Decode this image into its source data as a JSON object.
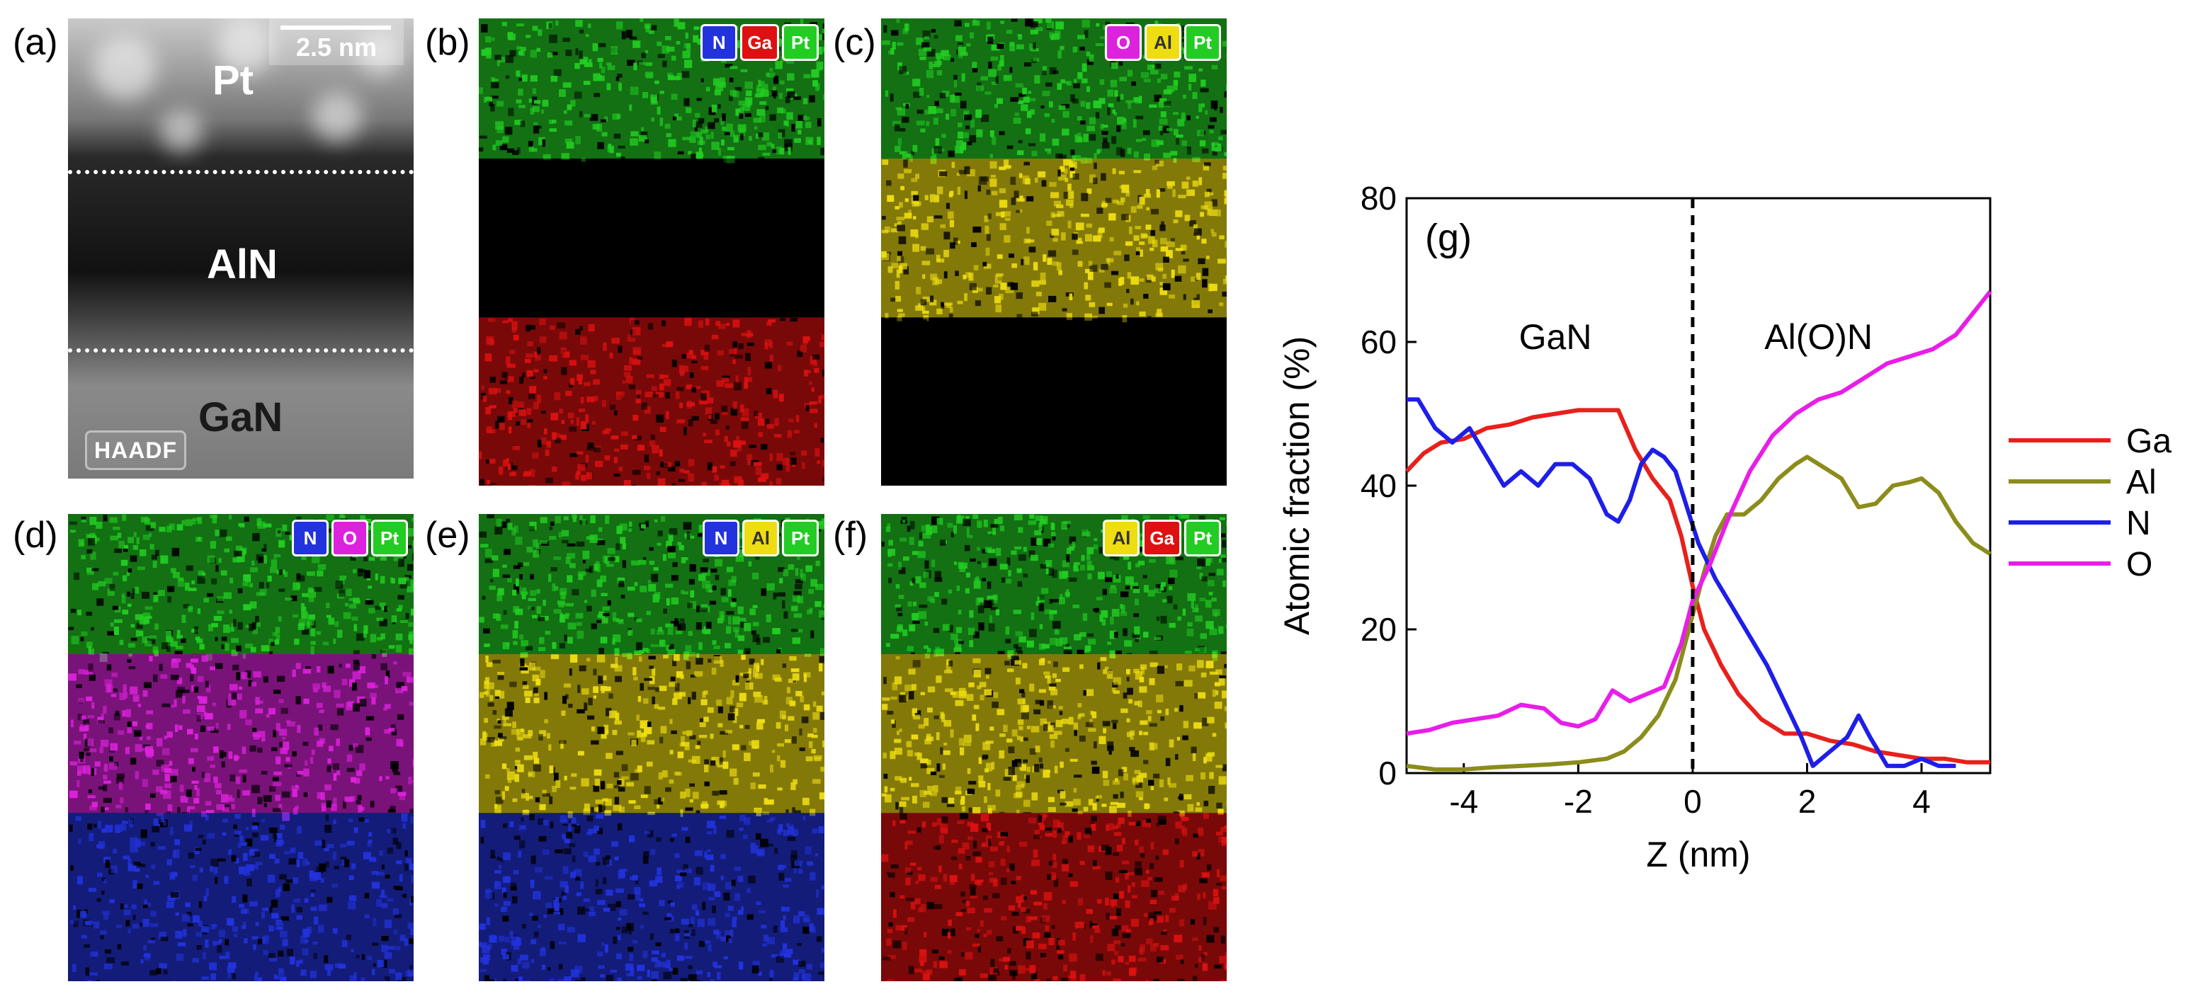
{
  "panels": {
    "a": {
      "label": "(a)",
      "scale_bar": "2.5 nm",
      "layers": [
        "Pt",
        "AlN",
        "GaN"
      ],
      "tag": "HAADF"
    },
    "b": {
      "label": "(b)",
      "badges": [
        {
          "text": "N",
          "color": "#2233dd"
        },
        {
          "text": "Ga",
          "color": "#dd1111"
        },
        {
          "text": "Pt",
          "color": "#22cc22"
        }
      ],
      "layers": [
        "#22cc22",
        "#000000",
        "#dd1111"
      ]
    },
    "c": {
      "label": "(c)",
      "badges": [
        {
          "text": "O",
          "color": "#dd22dd"
        },
        {
          "text": "Al",
          "color": "#eedd11"
        },
        {
          "text": "Pt",
          "color": "#22cc22"
        }
      ],
      "layers": [
        "#22cc22",
        "#eedd11",
        "#000000"
      ]
    },
    "d": {
      "label": "(d)",
      "badges": [
        {
          "text": "N",
          "color": "#2233dd"
        },
        {
          "text": "O",
          "color": "#dd22dd"
        },
        {
          "text": "Pt",
          "color": "#22cc22"
        }
      ],
      "layers": [
        "#22cc22",
        "#dd22dd",
        "#2233dd"
      ]
    },
    "e": {
      "label": "(e)",
      "badges": [
        {
          "text": "N",
          "color": "#2233dd"
        },
        {
          "text": "Al",
          "color": "#eedd11"
        },
        {
          "text": "Pt",
          "color": "#22cc22"
        }
      ],
      "layers": [
        "#22cc22",
        "#eedd11",
        "#2233dd"
      ]
    },
    "f": {
      "label": "(f)",
      "badges": [
        {
          "text": "Al",
          "color": "#eedd11"
        },
        {
          "text": "Ga",
          "color": "#dd1111"
        },
        {
          "text": "Pt",
          "color": "#22cc22"
        }
      ],
      "layers": [
        "#22cc22",
        "#eedd11",
        "#dd1111"
      ]
    }
  },
  "chart_data": {
    "type": "line",
    "panel_label": "(g)",
    "xlabel": "Z (nm)",
    "ylabel": "Atomic fraction (%)",
    "xlim": [
      -5,
      5.2
    ],
    "ylim": [
      0,
      80
    ],
    "xticks": [
      -4,
      -2,
      0,
      2,
      4
    ],
    "yticks": [
      0,
      20,
      40,
      60,
      80
    ],
    "annotations": [
      "GaN",
      "Al(O)N"
    ],
    "interface_line_x": 0,
    "legend_position": "right",
    "series": [
      {
        "name": "Ga",
        "color": "#e8201c",
        "x": [
          -5,
          -4.7,
          -4.4,
          -4,
          -3.6,
          -3.2,
          -2.8,
          -2.4,
          -2,
          -1.6,
          -1.3,
          -1.0,
          -0.7,
          -0.4,
          -0.2,
          0,
          0.2,
          0.5,
          0.8,
          1.2,
          1.6,
          2.0,
          2.4,
          2.8,
          3.2,
          3.6,
          4.0,
          4.4,
          4.8,
          5.2
        ],
        "values": [
          42,
          44.5,
          46,
          46.5,
          48,
          48.5,
          49.5,
          50,
          50.5,
          50.5,
          50.5,
          45,
          41,
          38,
          33,
          26,
          20,
          15,
          11,
          7.5,
          5.5,
          5.5,
          4.5,
          4,
          3,
          2.5,
          2,
          2,
          1.5,
          1.5
        ]
      },
      {
        "name": "Al",
        "color": "#8c8c1c",
        "x": [
          -5,
          -4.5,
          -4,
          -3.5,
          -3,
          -2.5,
          -2,
          -1.5,
          -1.2,
          -0.9,
          -0.6,
          -0.3,
          0,
          0.2,
          0.4,
          0.6,
          0.9,
          1.2,
          1.5,
          1.8,
          2.0,
          2.3,
          2.6,
          2.9,
          3.2,
          3.5,
          3.8,
          4.0,
          4.3,
          4.6,
          4.9,
          5.2
        ],
        "values": [
          1,
          0.5,
          0.5,
          0.8,
          1,
          1.2,
          1.5,
          2,
          3,
          5,
          8,
          13,
          22,
          28,
          33,
          36,
          36,
          38,
          41,
          43,
          44,
          42.5,
          41,
          37,
          37.5,
          40,
          40.5,
          41,
          39,
          35,
          32,
          30.5
        ]
      },
      {
        "name": "N",
        "color": "#1e1ee8",
        "x": [
          -5,
          -4.8,
          -4.5,
          -4.2,
          -3.9,
          -3.6,
          -3.3,
          -3.0,
          -2.7,
          -2.4,
          -2.1,
          -1.8,
          -1.5,
          -1.3,
          -1.1,
          -0.9,
          -0.7,
          -0.5,
          -0.3,
          -0.1,
          0.1,
          0.4,
          0.7,
          1.0,
          1.3,
          1.6,
          1.9,
          2.1,
          2.4,
          2.7,
          2.9,
          3.1,
          3.4,
          3.7,
          4.0,
          4.3,
          4.6
        ],
        "values": [
          52,
          52,
          48,
          46,
          48,
          44,
          40,
          42,
          40,
          43,
          43,
          41,
          36,
          35,
          38,
          43,
          45,
          44,
          42,
          37,
          32,
          27,
          23,
          19,
          15,
          10,
          5,
          1,
          3,
          5,
          8,
          5,
          1,
          1,
          2,
          1,
          1
        ]
      },
      {
        "name": "O",
        "color": "#e81ee8",
        "x": [
          -5,
          -4.6,
          -4.2,
          -3.8,
          -3.4,
          -3.0,
          -2.6,
          -2.3,
          -2.0,
          -1.7,
          -1.4,
          -1.1,
          -0.8,
          -0.5,
          -0.2,
          0,
          0.3,
          0.6,
          1.0,
          1.4,
          1.8,
          2.2,
          2.6,
          3.0,
          3.4,
          3.8,
          4.2,
          4.6,
          5.0,
          5.2
        ],
        "values": [
          5.5,
          6,
          7,
          7.5,
          8,
          9.5,
          9,
          7,
          6.5,
          7.5,
          11.5,
          10,
          11,
          12,
          18,
          24,
          29,
          35,
          42,
          47,
          50,
          52,
          53,
          55,
          57,
          58,
          59,
          61,
          65,
          67
        ]
      }
    ]
  }
}
